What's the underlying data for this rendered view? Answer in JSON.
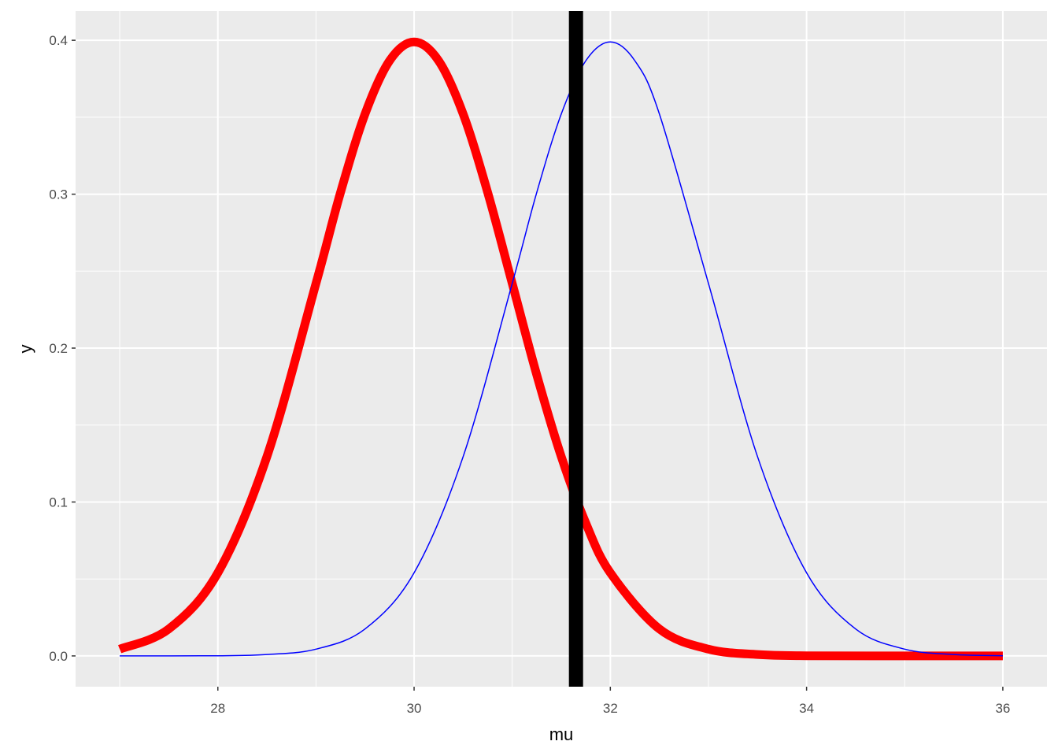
{
  "chart_data": {
    "type": "line",
    "title": "",
    "xlabel": "mu",
    "ylabel": "y",
    "xlim": [
      26.55,
      36.45
    ],
    "ylim": [
      -0.02,
      0.419
    ],
    "x_ticks": [
      28,
      30,
      32,
      34,
      36
    ],
    "x_tick_labels": [
      "28",
      "30",
      "32",
      "34",
      "36"
    ],
    "y_ticks": [
      0.0,
      0.1,
      0.2,
      0.3,
      0.4
    ],
    "y_tick_labels": [
      "0.0",
      "0.1",
      "0.2",
      "0.3",
      "0.4"
    ],
    "grid": true,
    "legend": "none",
    "x_range": [
      27,
      36
    ],
    "series": [
      {
        "x": [
          27.0,
          27.5,
          28.0,
          28.5,
          29.0,
          29.25,
          29.5,
          29.75,
          30.0,
          30.25,
          30.5,
          30.75,
          31.0,
          31.25,
          31.5,
          31.75,
          32.0,
          32.5,
          33.0,
          33.5,
          34.0,
          35.0,
          36.0
        ],
        "y": [
          0.0044,
          0.0175,
          0.054,
          0.1295,
          0.242,
          0.3011,
          0.3521,
          0.3867,
          0.3989,
          0.3867,
          0.3521,
          0.3011,
          0.242,
          0.1826,
          0.1295,
          0.0863,
          0.054,
          0.0175,
          0.0044,
          0.0009,
          0.0001,
          0.0,
          0.0
        ],
        "color": "#ff0000",
        "line_width": "thick"
      },
      {
        "x": [
          27.0,
          28.0,
          28.5,
          29.0,
          29.5,
          30.0,
          30.5,
          31.0,
          31.25,
          31.5,
          31.75,
          32.0,
          32.25,
          32.5,
          33.0,
          33.5,
          34.0,
          34.5,
          35.0,
          35.5,
          36.0
        ],
        "y": [
          0.0,
          0.0001,
          0.0009,
          0.0044,
          0.0175,
          0.054,
          0.1295,
          0.242,
          0.3011,
          0.3521,
          0.3867,
          0.3989,
          0.3867,
          0.3521,
          0.242,
          0.1295,
          0.054,
          0.0175,
          0.0044,
          0.0009,
          0.0001
        ],
        "color": "#0000ff",
        "line_width": "thin"
      }
    ],
    "vline": {
      "x": 31.65,
      "color": "#000000"
    },
    "panel_color": "#ebebeb",
    "grid_color": "#ffffff"
  }
}
